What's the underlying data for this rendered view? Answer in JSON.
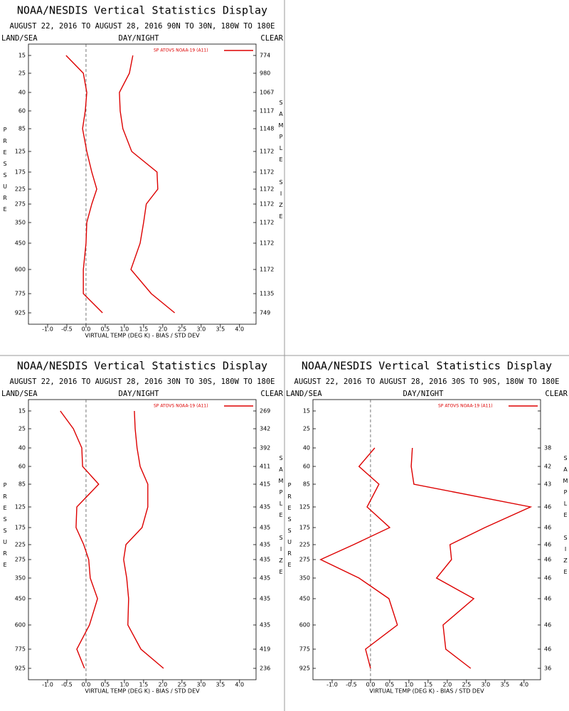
{
  "chart_data": [
    {
      "type": "line",
      "title": "NOAA/NESDIS Vertical Statistics Display",
      "subtitle": "AUGUST 22, 2016 TO AUGUST 28, 2016 90N TO 30N, 180W TO 180E",
      "land_sea_label": "LAND/SEA",
      "day_night_label": "DAY/NIGHT",
      "clear_label": "CLEAR",
      "ylabel": "PRESSURE",
      "y2label": "SAMPLE SIZE",
      "xlabel": "VIRTUAL TEMP (DEG K) - BIAS / STD DEV",
      "categories": [
        15,
        25,
        40,
        60,
        85,
        125,
        175,
        225,
        275,
        350,
        450,
        600,
        775,
        925
      ],
      "sample_sizes": [
        774,
        980,
        1067,
        1117,
        1148,
        1172,
        1172,
        1172,
        1172,
        1172,
        1172,
        1172,
        1135,
        749
      ],
      "series": [
        {
          "name": "SP ATOVS NOAA-19 (A11)",
          "color": "#dd0000",
          "values": [
            -0.52,
            -0.07,
            0.02,
            -0.02,
            -0.09,
            0.02,
            0.15,
            0.28,
            0.15,
            0.02,
            0.0,
            -0.07,
            -0.07,
            0.43
          ]
        },
        {
          "color": "#dd0000",
          "values": [
            1.22,
            1.13,
            0.87,
            0.89,
            0.96,
            1.19,
            1.85,
            1.87,
            1.57,
            1.5,
            1.41,
            1.17,
            1.7,
            2.31
          ]
        }
      ],
      "xlim": [
        -1.5,
        4.43
      ],
      "xticks": [
        {
          "value": -1,
          "label": "-1.0"
        },
        {
          "value": -0.5,
          "label": "-0.5"
        },
        {
          "value": 0,
          "label": "0.0"
        },
        {
          "value": 0.5,
          "label": "0.5"
        },
        {
          "value": 1,
          "label": "1.0"
        },
        {
          "value": 1.5,
          "label": "1.5"
        },
        {
          "value": 2,
          "label": "2.0"
        },
        {
          "value": 2.5,
          "label": "2.5"
        },
        {
          "value": 3,
          "label": "3.0"
        },
        {
          "value": 3.5,
          "label": "3.5"
        },
        {
          "value": 4,
          "label": "4.0"
        }
      ]
    },
    {
      "type": "line",
      "title": "NOAA/NESDIS Vertical Statistics Display",
      "subtitle": "AUGUST 22, 2016 TO AUGUST 28, 2016 30N TO 30S, 180W TO 180E",
      "land_sea_label": "LAND/SEA",
      "day_night_label": "DAY/NIGHT",
      "clear_label": "CLEAR",
      "ylabel": "PRESSURE",
      "y2label": "SAMPLE SIZE",
      "xlabel": "VIRTUAL TEMP (DEG K) - BIAS / STD DEV",
      "categories": [
        15,
        25,
        40,
        60,
        85,
        125,
        175,
        225,
        275,
        350,
        450,
        600,
        775,
        925
      ],
      "sample_sizes": [
        269,
        342,
        392,
        411,
        415,
        435,
        435,
        435,
        435,
        435,
        435,
        435,
        419,
        236
      ],
      "series": [
        {
          "name": "SP ATOVS NOAA-19 (A11)",
          "color": "#dd0000",
          "values": [
            -0.67,
            -0.33,
            -0.11,
            -0.09,
            0.33,
            -0.24,
            -0.26,
            -0.06,
            0.07,
            0.11,
            0.3,
            0.09,
            -0.24,
            -0.04
          ]
        },
        {
          "color": "#dd0000",
          "values": [
            1.26,
            1.28,
            1.33,
            1.41,
            1.61,
            1.61,
            1.46,
            1.04,
            0.98,
            1.06,
            1.11,
            1.09,
            1.43,
            2.02
          ]
        }
      ],
      "xlim": [
        -1.5,
        4.43
      ],
      "xticks": [
        {
          "value": -1,
          "label": "-1.0"
        },
        {
          "value": -0.5,
          "label": "-0.5"
        },
        {
          "value": 0,
          "label": "0.0"
        },
        {
          "value": 0.5,
          "label": "0.5"
        },
        {
          "value": 1,
          "label": "1.0"
        },
        {
          "value": 1.5,
          "label": "1.5"
        },
        {
          "value": 2,
          "label": "2.0"
        },
        {
          "value": 2.5,
          "label": "2.5"
        },
        {
          "value": 3,
          "label": "3.0"
        },
        {
          "value": 3.5,
          "label": "3.5"
        },
        {
          "value": 4,
          "label": "4.0"
        }
      ]
    },
    {
      "type": "line",
      "title": "NOAA/NESDIS Vertical Statistics Display",
      "subtitle": "AUGUST 22, 2016 TO AUGUST 28, 2016 30S TO 90S, 180W TO 180E",
      "land_sea_label": "LAND/SEA",
      "day_night_label": "DAY/NIGHT",
      "clear_label": "CLEAR",
      "ylabel": "PRESSURE",
      "y2label": "SAMPLE SIZE",
      "xlabel": "VIRTUAL TEMP (DEG K) - BIAS / STD DEV",
      "categories": [
        15,
        25,
        40,
        60,
        85,
        125,
        175,
        225,
        275,
        350,
        450,
        600,
        775,
        925
      ],
      "sample_sizes": [
        null,
        null,
        38,
        42,
        43,
        46,
        46,
        46,
        46,
        46,
        46,
        46,
        46,
        36
      ],
      "series": [
        {
          "name": "SP ATOVS NOAA-19 (A11)",
          "color": "#dd0000",
          "values": [
            null,
            null,
            0.11,
            -0.3,
            0.22,
            -0.09,
            0.5,
            -0.44,
            -1.3,
            -0.3,
            0.48,
            0.7,
            -0.13,
            0.0
          ]
        },
        {
          "color": "#dd0000",
          "values": [
            null,
            null,
            1.09,
            1.06,
            1.13,
            4.17,
            2.98,
            2.07,
            2.11,
            1.72,
            2.69,
            1.89,
            1.96,
            2.61
          ]
        }
      ],
      "xlim": [
        -1.5,
        4.43
      ],
      "xticks": [
        {
          "value": -1,
          "label": "-1.0"
        },
        {
          "value": -0.5,
          "label": "-0.5"
        },
        {
          "value": 0,
          "label": "0.0"
        },
        {
          "value": 0.5,
          "label": "0.5"
        },
        {
          "value": 1,
          "label": "1.0"
        },
        {
          "value": 1.5,
          "label": "1.5"
        },
        {
          "value": 2,
          "label": "2.0"
        },
        {
          "value": 2.5,
          "label": "2.5"
        },
        {
          "value": 3,
          "label": "3.0"
        },
        {
          "value": 3.5,
          "label": "3.5"
        },
        {
          "value": 4,
          "label": "4.0"
        }
      ]
    }
  ]
}
